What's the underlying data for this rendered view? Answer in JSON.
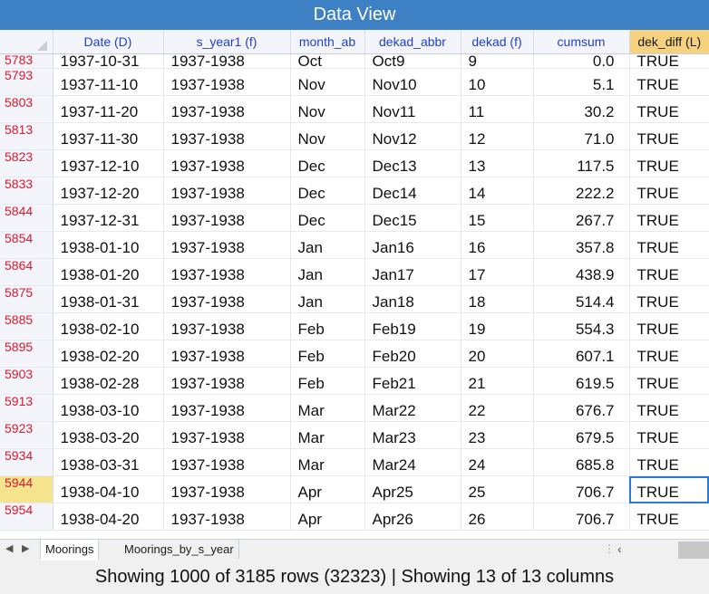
{
  "window": {
    "title": "Data View"
  },
  "columns": [
    "Date (D)",
    "s_year1 (f)",
    "month_ab",
    "dekad_abbr",
    "dekad (f)",
    "cumsum",
    "dek_diff (L)"
  ],
  "rows": [
    {
      "rn": "5783",
      "date": "1937-10-31",
      "s_year": "1937-1938",
      "month": "Oct",
      "dekad_abbr": "Oct9",
      "dekad": "9",
      "cumsum": "0.0",
      "dek_diff": "TRUE"
    },
    {
      "rn": "5793",
      "date": "1937-11-10",
      "s_year": "1937-1938",
      "month": "Nov",
      "dekad_abbr": "Nov10",
      "dekad": "10",
      "cumsum": "5.1",
      "dek_diff": "TRUE"
    },
    {
      "rn": "5803",
      "date": "1937-11-20",
      "s_year": "1937-1938",
      "month": "Nov",
      "dekad_abbr": "Nov11",
      "dekad": "11",
      "cumsum": "30.2",
      "dek_diff": "TRUE"
    },
    {
      "rn": "5813",
      "date": "1937-11-30",
      "s_year": "1937-1938",
      "month": "Nov",
      "dekad_abbr": "Nov12",
      "dekad": "12",
      "cumsum": "71.0",
      "dek_diff": "TRUE"
    },
    {
      "rn": "5823",
      "date": "1937-12-10",
      "s_year": "1937-1938",
      "month": "Dec",
      "dekad_abbr": "Dec13",
      "dekad": "13",
      "cumsum": "117.5",
      "dek_diff": "TRUE"
    },
    {
      "rn": "5833",
      "date": "1937-12-20",
      "s_year": "1937-1938",
      "month": "Dec",
      "dekad_abbr": "Dec14",
      "dekad": "14",
      "cumsum": "222.2",
      "dek_diff": "TRUE"
    },
    {
      "rn": "5844",
      "date": "1937-12-31",
      "s_year": "1937-1938",
      "month": "Dec",
      "dekad_abbr": "Dec15",
      "dekad": "15",
      "cumsum": "267.7",
      "dek_diff": "TRUE"
    },
    {
      "rn": "5854",
      "date": "1938-01-10",
      "s_year": "1937-1938",
      "month": "Jan",
      "dekad_abbr": "Jan16",
      "dekad": "16",
      "cumsum": "357.8",
      "dek_diff": "TRUE"
    },
    {
      "rn": "5864",
      "date": "1938-01-20",
      "s_year": "1937-1938",
      "month": "Jan",
      "dekad_abbr": "Jan17",
      "dekad": "17",
      "cumsum": "438.9",
      "dek_diff": "TRUE"
    },
    {
      "rn": "5875",
      "date": "1938-01-31",
      "s_year": "1937-1938",
      "month": "Jan",
      "dekad_abbr": "Jan18",
      "dekad": "18",
      "cumsum": "514.4",
      "dek_diff": "TRUE"
    },
    {
      "rn": "5885",
      "date": "1938-02-10",
      "s_year": "1937-1938",
      "month": "Feb",
      "dekad_abbr": "Feb19",
      "dekad": "19",
      "cumsum": "554.3",
      "dek_diff": "TRUE"
    },
    {
      "rn": "5895",
      "date": "1938-02-20",
      "s_year": "1937-1938",
      "month": "Feb",
      "dekad_abbr": "Feb20",
      "dekad": "20",
      "cumsum": "607.1",
      "dek_diff": "TRUE"
    },
    {
      "rn": "5903",
      "date": "1938-02-28",
      "s_year": "1937-1938",
      "month": "Feb",
      "dekad_abbr": "Feb21",
      "dekad": "21",
      "cumsum": "619.5",
      "dek_diff": "TRUE"
    },
    {
      "rn": "5913",
      "date": "1938-03-10",
      "s_year": "1937-1938",
      "month": "Mar",
      "dekad_abbr": "Mar22",
      "dekad": "22",
      "cumsum": "676.7",
      "dek_diff": "TRUE"
    },
    {
      "rn": "5923",
      "date": "1938-03-20",
      "s_year": "1937-1938",
      "month": "Mar",
      "dekad_abbr": "Mar23",
      "dekad": "23",
      "cumsum": "679.5",
      "dek_diff": "TRUE"
    },
    {
      "rn": "5934",
      "date": "1938-03-31",
      "s_year": "1937-1938",
      "month": "Mar",
      "dekad_abbr": "Mar24",
      "dekad": "24",
      "cumsum": "685.8",
      "dek_diff": "TRUE"
    },
    {
      "rn": "5944",
      "date": "1938-04-10",
      "s_year": "1937-1938",
      "month": "Apr",
      "dekad_abbr": "Apr25",
      "dekad": "25",
      "cumsum": "706.7",
      "dek_diff": "TRUE",
      "selected": true
    },
    {
      "rn": "5954",
      "date": "1938-04-20",
      "s_year": "1937-1938",
      "month": "Apr",
      "dekad_abbr": "Apr26",
      "dekad": "26",
      "cumsum": "706.7",
      "dek_diff": "TRUE"
    }
  ],
  "tabs": [
    {
      "label": "Moorings",
      "active": true
    },
    {
      "label": "Moorings_by_s_year",
      "active": false
    }
  ],
  "nav": {
    "prev_glyph": "◀",
    "next_glyph": "▶",
    "dots": "⋮",
    "scroll_left": "‹"
  },
  "status": {
    "text": "Showing 1000 of 3185 rows (32323) | Showing 13 of 13 columns"
  },
  "colors": {
    "titlebar": "#3e80c4",
    "row_number": "#e0162d",
    "header_text": "#1f3fd0",
    "selected_row_header": "#f6e38e",
    "highlight_header": "#f6d27e",
    "cell_cursor": "#2b7bd6"
  }
}
